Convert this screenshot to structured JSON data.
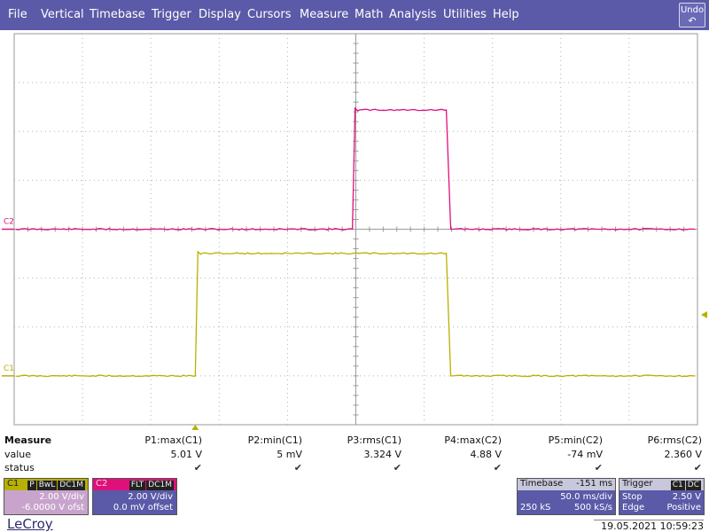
{
  "menu": {
    "items": [
      "File",
      "Vertical",
      "Timebase",
      "Trigger",
      "Display",
      "Cursors",
      "Measure",
      "Math",
      "Analysis",
      "Utilities",
      "Help"
    ],
    "undo_label": "Undo",
    "undo_icon": "undo-arrow-icon"
  },
  "channels": {
    "c1": {
      "label": "C1",
      "color": "#b8b000"
    },
    "c2": {
      "label": "C2",
      "color": "#e0107a"
    }
  },
  "measure": {
    "title": "Measure",
    "value_label": "value",
    "status_label": "status",
    "params": [
      {
        "name": "P1:max(C1)",
        "value": "5.01 V",
        "status": "check"
      },
      {
        "name": "P2:min(C1)",
        "value": "5 mV",
        "status": "check"
      },
      {
        "name": "P3:rms(C1)",
        "value": "3.324 V",
        "status": "check"
      },
      {
        "name": "P4:max(C2)",
        "value": "4.88 V",
        "status": "check"
      },
      {
        "name": "P5:min(C2)",
        "value": "-74 mV",
        "status": "check"
      },
      {
        "name": "P6:rms(C2)",
        "value": "2.360 V",
        "status": "check"
      }
    ]
  },
  "c1_box": {
    "name": "C1",
    "tags": [
      "P",
      "BwL",
      "DC1M"
    ],
    "vdiv": "2.00 V/div",
    "offset": "-6.0000 V ofst",
    "color": "#c8a4c8"
  },
  "c2_box": {
    "name": "C2",
    "tags": [
      "FLT",
      "DC1M"
    ],
    "vdiv": "2.00 V/div",
    "offset": "0.0 mV offset",
    "color": "#e0107a"
  },
  "timebase_box": {
    "title": "Timebase",
    "delay": "-151 ms",
    "tdiv": "50.0 ms/div",
    "samples": "250 kS",
    "rate": "500 kS/s"
  },
  "trigger_box": {
    "title": "Trigger",
    "tags": [
      "C1",
      "DC"
    ],
    "mode": "Stop",
    "level": "2.50 V",
    "type": "Edge",
    "slope": "Positive"
  },
  "footer": {
    "brand": "LeCroy",
    "datetime": "19.05.2021 10:59:23"
  },
  "waveforms": {
    "c2": {
      "low_v": 0.0,
      "high_v": 4.88,
      "rise_ms": -2.5,
      "fall_ms": 67.5
    },
    "c1": {
      "low_v": 0.0,
      "high_v": 5.01,
      "rise_ms": -117.5,
      "fall_ms": 67.5
    }
  }
}
